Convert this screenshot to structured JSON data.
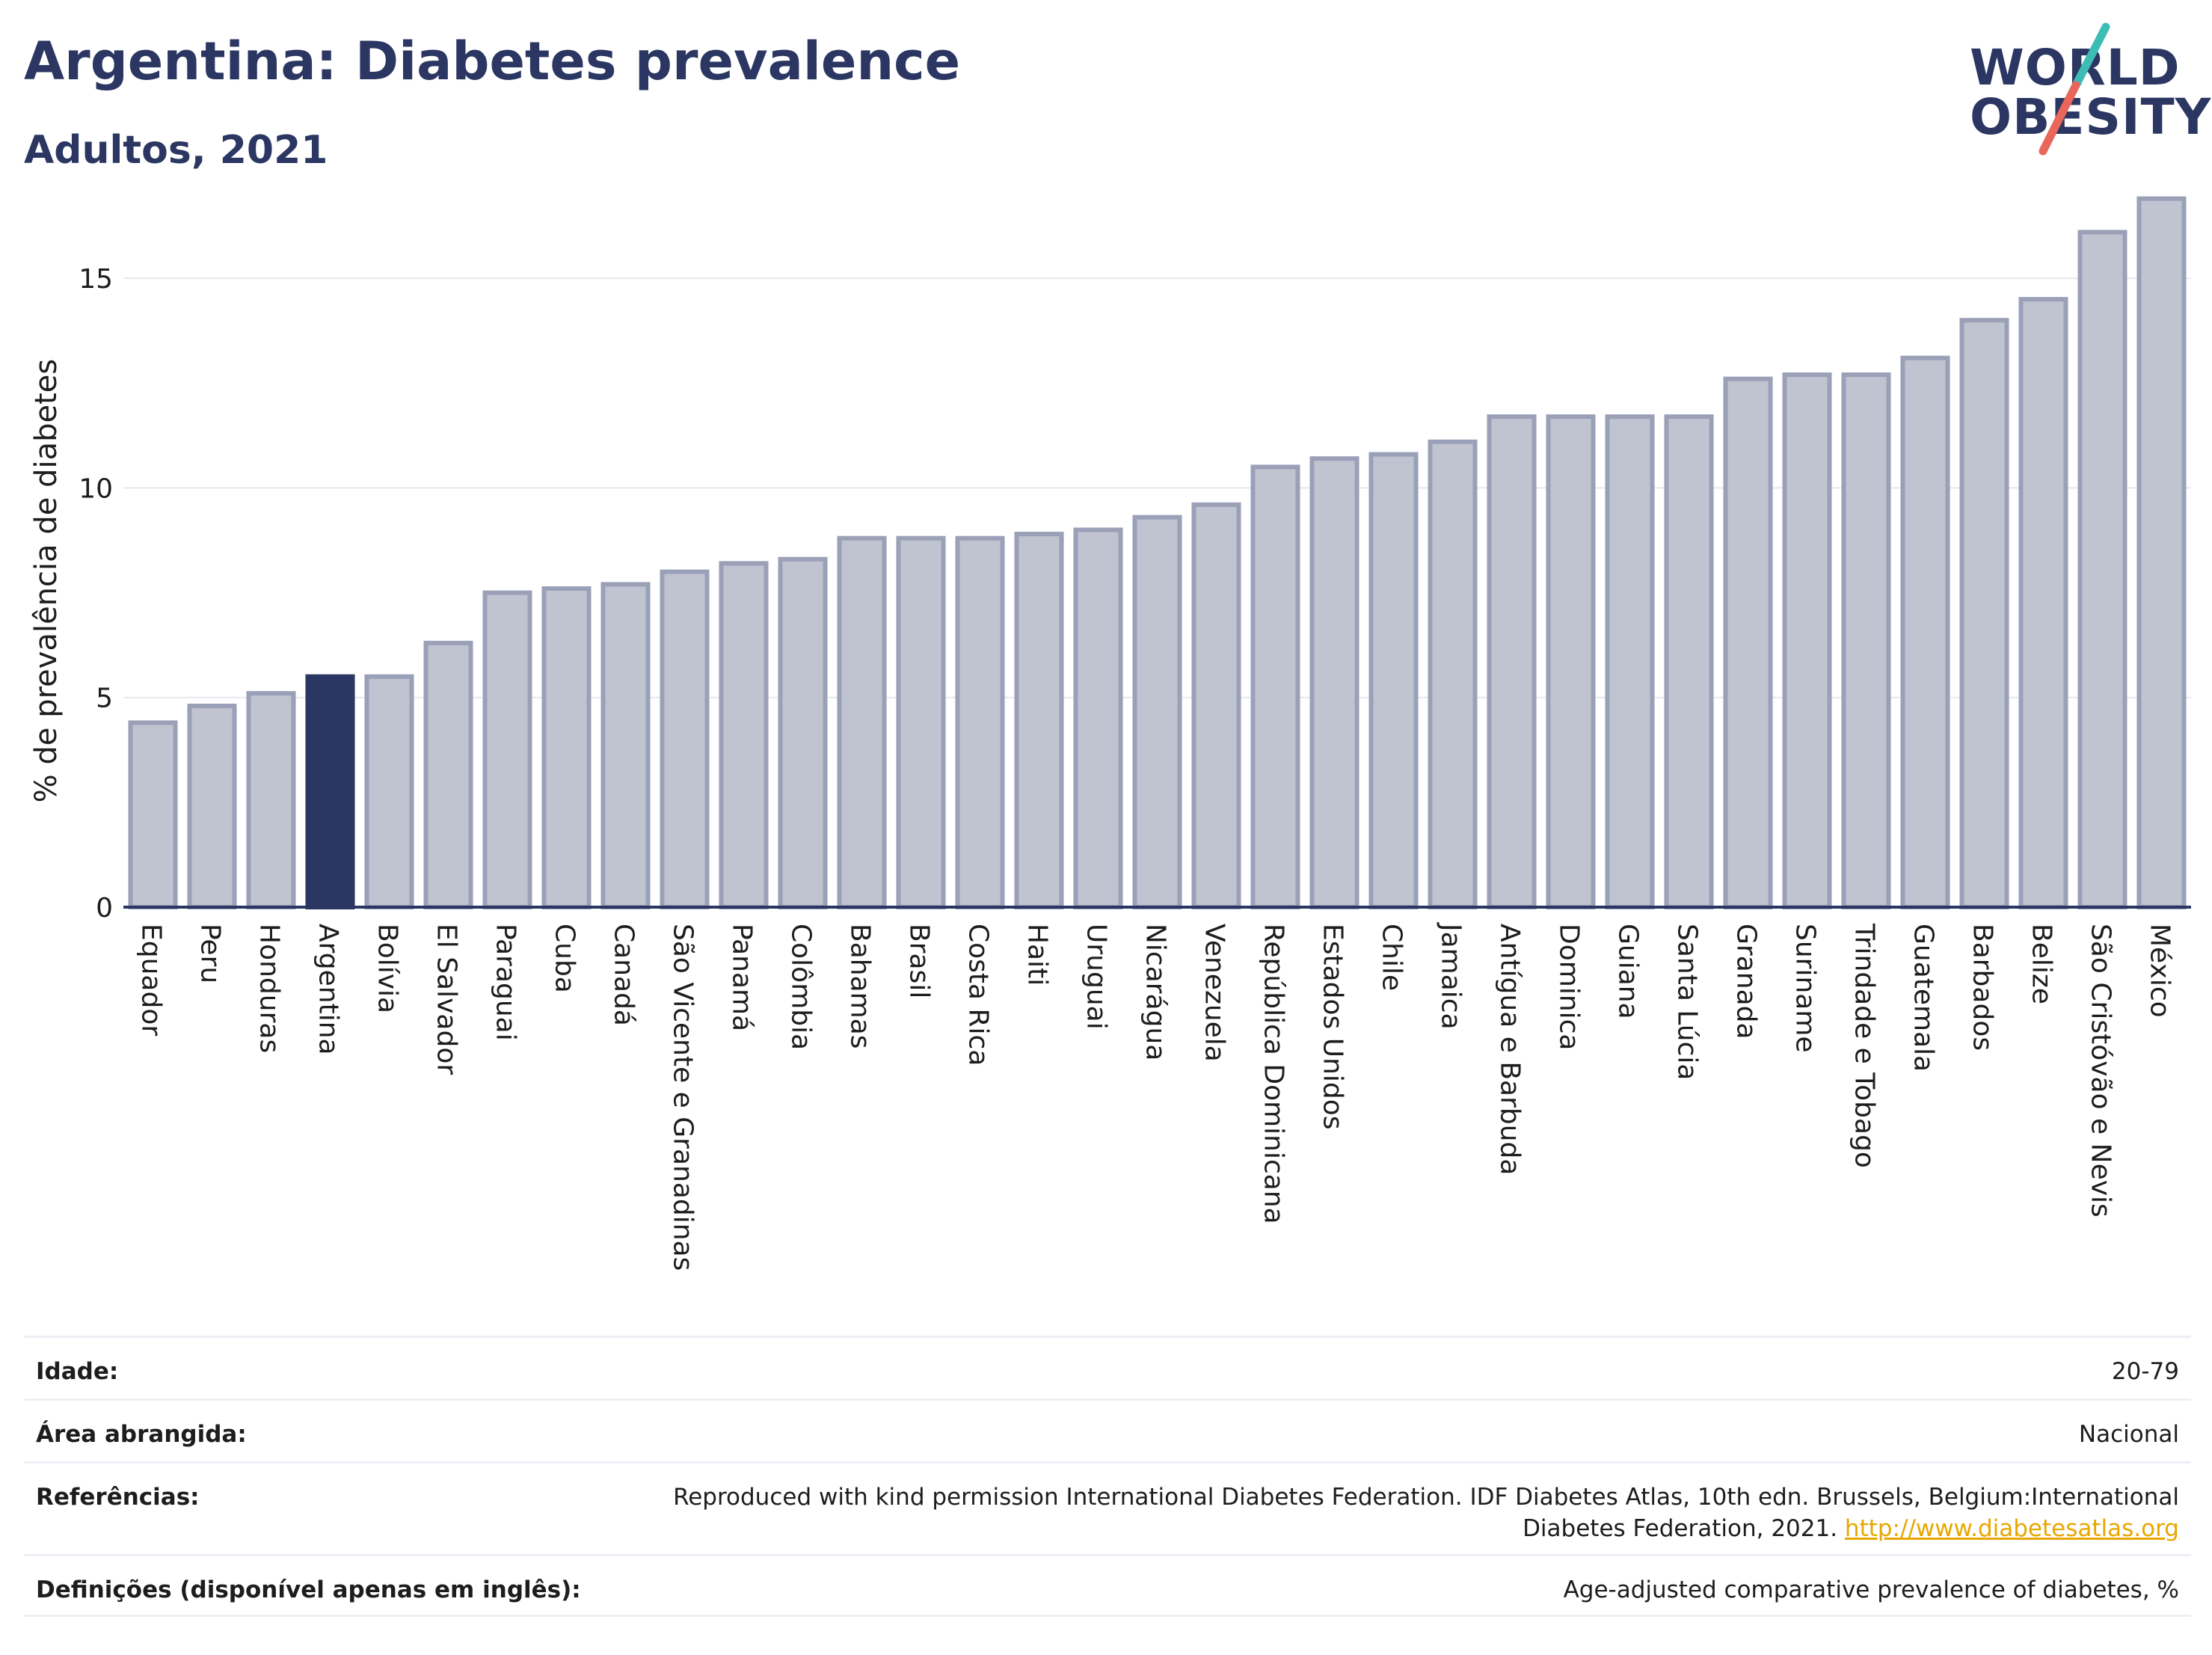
{
  "header": {
    "title": "Argentina: Diabetes prevalence",
    "subtitle": "Adultos, 2021",
    "logo_line1": "WORLD",
    "logo_line2": "OBESITY"
  },
  "colors": {
    "highlight": "#2b3762",
    "bar": "#c0c3d0",
    "bar_border": "#9aa0b8",
    "title": "#2b3762",
    "link": "#e8a700",
    "logo_slash_top": "#3dbbb5",
    "logo_slash_bottom": "#e8665a"
  },
  "chart_data": {
    "type": "bar",
    "ylabel": "% de prevalência de diabetes",
    "ylim": [
      0,
      17
    ],
    "yticks": [
      0,
      5,
      10,
      15
    ],
    "grid": true,
    "highlight": "Argentina",
    "categories": [
      "Equador",
      "Peru",
      "Honduras",
      "Argentina",
      "Bolívia",
      "El Salvador",
      "Paraguai",
      "Cuba",
      "Canadá",
      "São Vicente e Granadinas",
      "Panamá",
      "Colômbia",
      "Bahamas",
      "Brasil",
      "Costa Rica",
      "Haiti",
      "Uruguai",
      "Nicarágua",
      "Venezuela",
      "República Dominicana",
      "Estados Unidos",
      "Chile",
      "Jamaica",
      "Antígua e Barbuda",
      "Dominica",
      "Guiana",
      "Santa Lúcia",
      "Granada",
      "Suriname",
      "Trindade e Tobago",
      "Guatemala",
      "Barbados",
      "Belize",
      "São Cristóvão e Nevis",
      "México"
    ],
    "values": [
      4.4,
      4.8,
      5.1,
      5.5,
      5.5,
      6.3,
      7.5,
      7.6,
      7.7,
      8.0,
      8.2,
      8.3,
      8.8,
      8.8,
      8.8,
      8.9,
      9.0,
      9.3,
      9.6,
      10.5,
      10.7,
      10.8,
      11.1,
      11.7,
      11.7,
      11.7,
      11.7,
      12.6,
      12.7,
      12.7,
      13.1,
      14.0,
      14.5,
      16.1,
      16.9
    ]
  },
  "meta": [
    {
      "key": "Idade:",
      "value": "20-79"
    },
    {
      "key": "Área abrangida:",
      "value": "Nacional"
    },
    {
      "key": "Referências:",
      "value": "Reproduced with kind permission International Diabetes Federation.  IDF Diabetes Atlas, 10th edn. Brussels, Belgium:International Diabetes Federation, 2021.",
      "link": "http://www.diabetesatlas.org"
    },
    {
      "key": "Definições (disponível apenas em inglês):",
      "value": "Age-adjusted comparative prevalence of diabetes, %"
    }
  ]
}
